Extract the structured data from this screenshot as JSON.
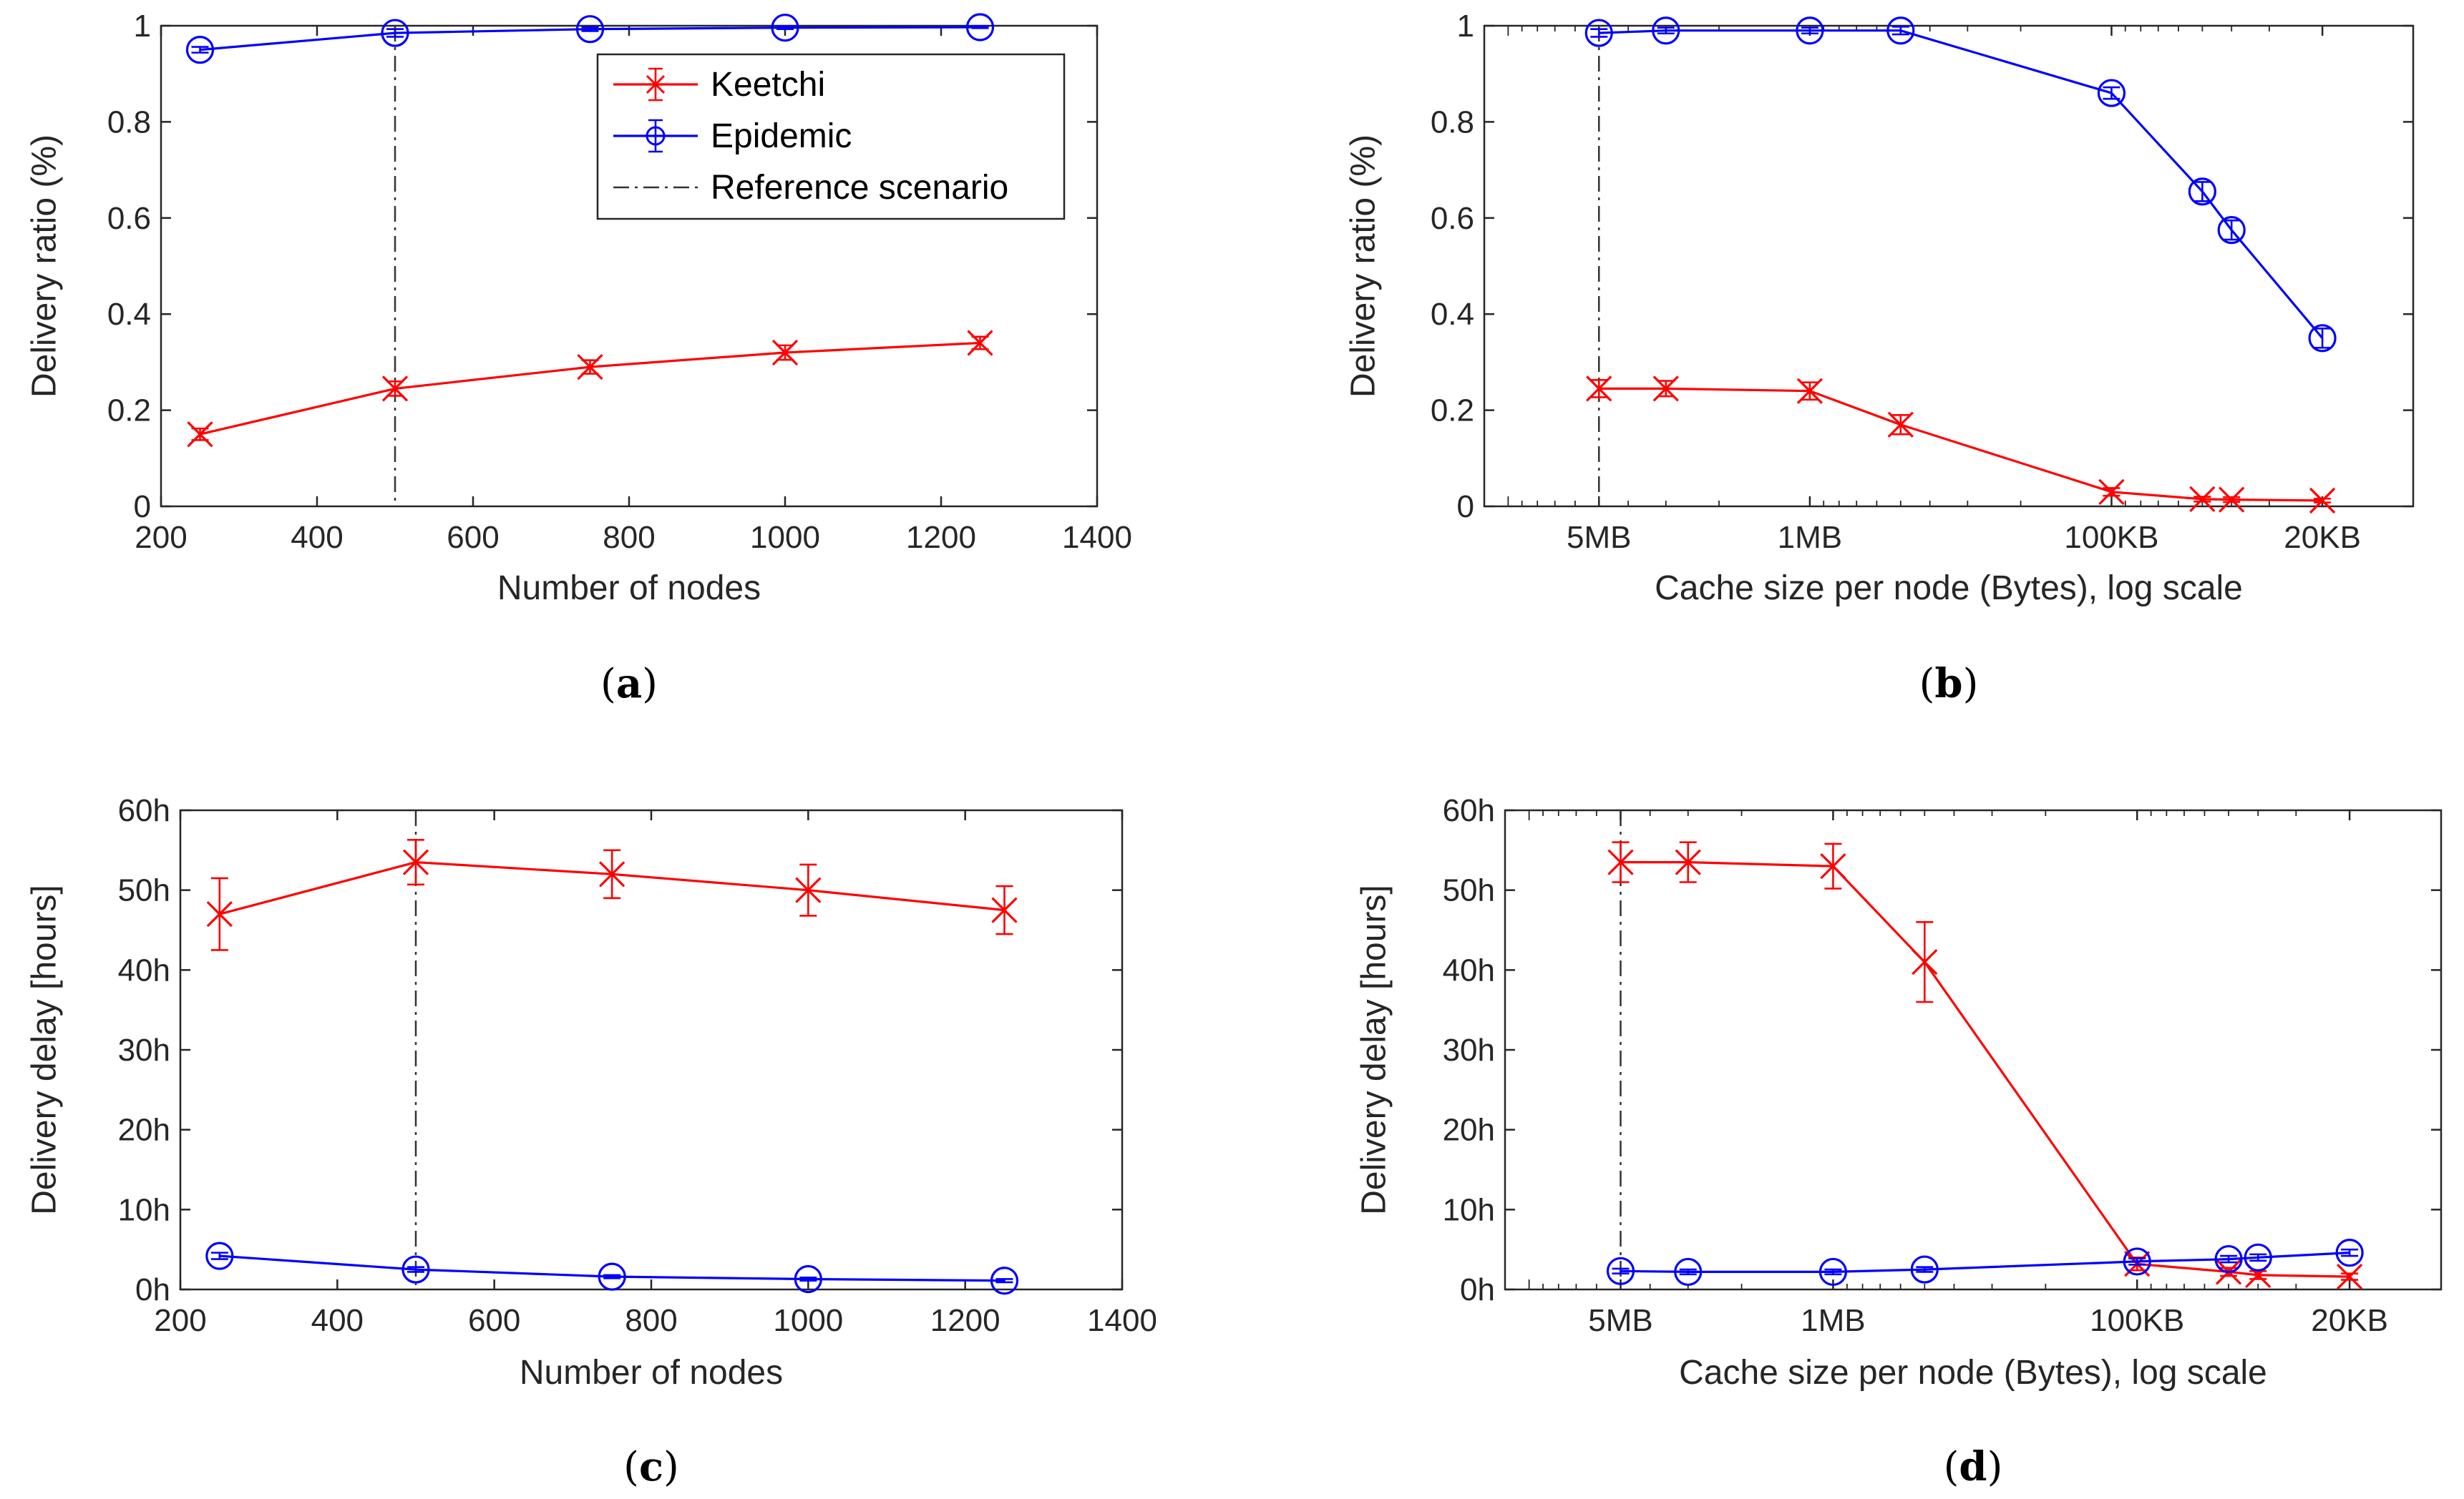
{
  "colors": {
    "keetchi": "#ff0000",
    "epidemic": "#0000ff",
    "reference": "#333333",
    "axis": "#262626"
  },
  "legend": {
    "items": [
      {
        "label": "Keetchi",
        "color": "#ff0000",
        "marker": "x"
      },
      {
        "label": "Epidemic",
        "color": "#0000ff",
        "marker": "o"
      },
      {
        "label": "Reference scenario",
        "color": "#333333",
        "marker": "dashdot"
      }
    ]
  },
  "chart_data": [
    {
      "id": "a",
      "caption": "a",
      "type": "line",
      "xscale": "linear",
      "xlabel": "Number of nodes",
      "ylabel": "Delivery ratio (%)",
      "xlim": [
        200,
        1400
      ],
      "ylim": [
        0,
        1
      ],
      "xticks": [
        200,
        400,
        600,
        800,
        1000,
        1200,
        1400
      ],
      "xtick_labels": [
        "200",
        "400",
        "600",
        "800",
        "1000",
        "1200",
        "1400"
      ],
      "yticks": [
        0,
        0.2,
        0.4,
        0.6,
        0.8,
        1
      ],
      "ytick_labels": [
        "0",
        "0.2",
        "0.4",
        "0.6",
        "0.8",
        "1"
      ],
      "reference_x": 500,
      "legend": true,
      "series": [
        {
          "name": "Keetchi",
          "marker": "x",
          "x": [
            250,
            500,
            750,
            1000,
            1250
          ],
          "y": [
            0.15,
            0.245,
            0.29,
            0.32,
            0.34
          ],
          "err": [
            0.012,
            0.015,
            0.014,
            0.015,
            0.013
          ]
        },
        {
          "name": "Epidemic",
          "marker": "o",
          "x": [
            250,
            500,
            750,
            1000,
            1250
          ],
          "y": [
            0.95,
            0.985,
            0.993,
            0.996,
            0.997
          ],
          "err": [
            0.006,
            0.008,
            0.004,
            0.003,
            0.002
          ]
        }
      ]
    },
    {
      "id": "b",
      "caption": "b",
      "type": "line",
      "xscale": "log-reversed",
      "xlabel": "Cache size per node (Bytes), log scale",
      "ylabel": "Delivery ratio (%)",
      "xlim": [
        12000000,
        10000
      ],
      "ylim": [
        0,
        1
      ],
      "xticks": [
        5000000,
        1000000,
        100000,
        20000
      ],
      "xtick_labels": [
        "5MB",
        "1MB",
        "100KB",
        "20KB"
      ],
      "yticks": [
        0,
        0.2,
        0.4,
        0.6,
        0.8,
        1
      ],
      "ytick_labels": [
        "0",
        "0.2",
        "0.4",
        "0.6",
        "0.8",
        "1"
      ],
      "reference_x": 5000000,
      "legend": false,
      "series": [
        {
          "name": "Keetchi",
          "marker": "x",
          "x": [
            5000000,
            3000000,
            1000000,
            500000,
            100000,
            50000,
            40000,
            20000
          ],
          "y": [
            0.245,
            0.245,
            0.24,
            0.17,
            0.03,
            0.015,
            0.014,
            0.012
          ],
          "err": [
            0.018,
            0.016,
            0.018,
            0.02,
            0.008,
            0.005,
            0.005,
            0.004
          ]
        },
        {
          "name": "Epidemic",
          "marker": "o",
          "x": [
            5000000,
            3000000,
            1000000,
            500000,
            100000,
            50000,
            40000,
            20000
          ],
          "y": [
            0.985,
            0.99,
            0.99,
            0.99,
            0.86,
            0.655,
            0.575,
            0.35
          ],
          "err": [
            0.008,
            0.006,
            0.006,
            0.008,
            0.012,
            0.02,
            0.02,
            0.02
          ]
        }
      ]
    },
    {
      "id": "c",
      "caption": "c",
      "type": "line",
      "xscale": "linear",
      "xlabel": "Number of nodes",
      "ylabel": "Delivery delay [hours]",
      "xlim": [
        200,
        1400
      ],
      "ylim": [
        0,
        60
      ],
      "xticks": [
        200,
        400,
        600,
        800,
        1000,
        1200,
        1400
      ],
      "xtick_labels": [
        "200",
        "400",
        "600",
        "800",
        "1000",
        "1200",
        "1400"
      ],
      "yticks": [
        0,
        10,
        20,
        30,
        40,
        50,
        60
      ],
      "ytick_labels": [
        "0h",
        "10h",
        "20h",
        "30h",
        "40h",
        "50h",
        "60h"
      ],
      "reference_x": 500,
      "legend": false,
      "series": [
        {
          "name": "Keetchi",
          "marker": "x",
          "x": [
            250,
            500,
            750,
            1000,
            1250
          ],
          "y": [
            47,
            53.5,
            52,
            50,
            47.5
          ],
          "err": [
            4.5,
            2.8,
            3.0,
            3.2,
            3.0
          ]
        },
        {
          "name": "Epidemic",
          "marker": "o",
          "x": [
            250,
            500,
            750,
            1000,
            1250
          ],
          "y": [
            4.2,
            2.5,
            1.6,
            1.3,
            1.1
          ],
          "err": [
            0.4,
            0.3,
            0.2,
            0.2,
            0.2
          ]
        }
      ]
    },
    {
      "id": "d",
      "caption": "d",
      "type": "line",
      "xscale": "log-reversed",
      "xlabel": "Cache size per node (Bytes), log scale",
      "ylabel": "Delivery delay [hours]",
      "xlim": [
        12000000,
        10000
      ],
      "ylim": [
        0,
        60
      ],
      "xticks": [
        5000000,
        1000000,
        100000,
        20000
      ],
      "xtick_labels": [
        "5MB",
        "1MB",
        "100KB",
        "20KB"
      ],
      "yticks": [
        0,
        10,
        20,
        30,
        40,
        50,
        60
      ],
      "ytick_labels": [
        "0h",
        "10h",
        "20h",
        "30h",
        "40h",
        "50h",
        "60h"
      ],
      "reference_x": 5000000,
      "legend": false,
      "series": [
        {
          "name": "Keetchi",
          "marker": "x",
          "x": [
            5000000,
            3000000,
            1000000,
            500000,
            100000,
            50000,
            40000,
            20000
          ],
          "y": [
            53.5,
            53.5,
            53,
            41,
            3.2,
            2.2,
            1.8,
            1.6
          ],
          "err": [
            2.5,
            2.5,
            2.8,
            5.0,
            0.8,
            0.5,
            0.5,
            0.4
          ]
        },
        {
          "name": "Epidemic",
          "marker": "o",
          "x": [
            5000000,
            3000000,
            1000000,
            500000,
            100000,
            50000,
            40000,
            20000
          ],
          "y": [
            2.3,
            2.2,
            2.2,
            2.5,
            3.5,
            3.8,
            4.0,
            4.6
          ],
          "err": [
            0.3,
            0.3,
            0.3,
            0.3,
            0.4,
            0.4,
            0.4,
            0.4
          ]
        }
      ]
    }
  ]
}
